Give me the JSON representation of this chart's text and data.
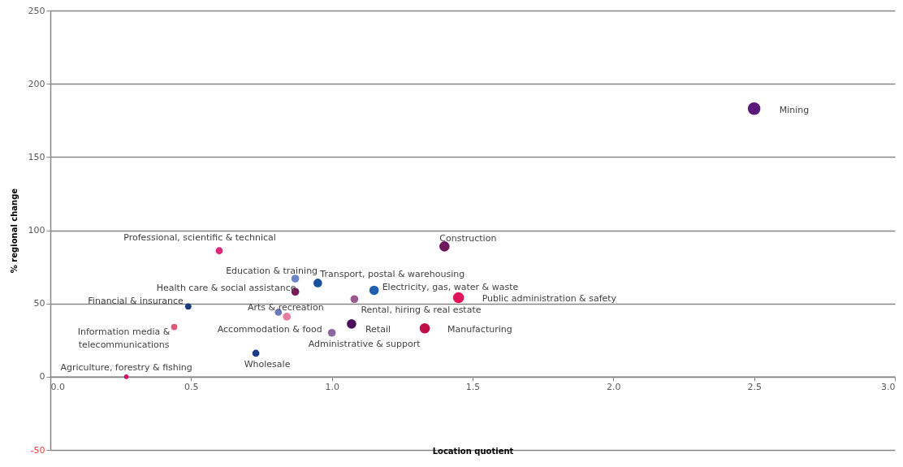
{
  "chart_data": {
    "type": "bubble",
    "xlabel": "Location quotient",
    "ylabel": "% regional change",
    "xlim": [
      0,
      3
    ],
    "xticks": [
      {
        "value": 0,
        "label": "0.0"
      },
      {
        "value": 0.5,
        "label": "0.5"
      },
      {
        "value": 1,
        "label": "1.0"
      },
      {
        "value": 1.5,
        "label": "1.5"
      },
      {
        "value": 2,
        "label": "2.0"
      },
      {
        "value": 2.5,
        "label": "2.5"
      },
      {
        "value": 3,
        "label": "3.0"
      }
    ],
    "ylim": [
      -50,
      250
    ],
    "yticks": [
      -50,
      0,
      50,
      100,
      150,
      200,
      250
    ],
    "grid": "y",
    "series": [
      {
        "name": "Mining",
        "color": "#5b1a7a",
        "x": [
          2.5
        ],
        "values": [
          183
        ],
        "sizes": [
          1
        ]
      },
      {
        "name": "Construction",
        "color": "#6e1a5c",
        "x": [
          1.4
        ],
        "values": [
          89
        ],
        "sizes": [
          0.66
        ]
      },
      {
        "name": "Professional, scientific & technical",
        "color": "#e0287a",
        "x": [
          0.6
        ],
        "values": [
          86
        ],
        "sizes": [
          0.32
        ]
      },
      {
        "name": "Education & training",
        "color": "#6b84c8",
        "x": [
          0.87
        ],
        "values": [
          67
        ],
        "sizes": [
          0.39
        ]
      },
      {
        "name": "Transport, postal & warehousing",
        "color": "#1a4f9a",
        "x": [
          0.95
        ],
        "values": [
          64
        ],
        "sizes": [
          0.47
        ]
      },
      {
        "name": "Health care & social assistance",
        "color": "#7a1a5c",
        "x": [
          0.87
        ],
        "values": [
          58
        ],
        "sizes": [
          0.39
        ]
      },
      {
        "name": "Electricity, gas, water & waste",
        "color": "#1f5fb0",
        "x": [
          1.15
        ],
        "values": [
          59
        ],
        "sizes": [
          0.56
        ]
      },
      {
        "name": "Public administration & safety",
        "color": "#e0145a",
        "x": [
          1.45
        ],
        "values": [
          54
        ],
        "sizes": [
          0.77
        ]
      },
      {
        "name": "Rental, hiring & real estate",
        "color": "#9a5a8e",
        "x": [
          1.08
        ],
        "values": [
          53
        ],
        "sizes": [
          0.39
        ]
      },
      {
        "name": "Financial & insurance",
        "color": "#1a3a7a",
        "x": [
          0.49
        ],
        "values": [
          48
        ],
        "sizes": [
          0.25
        ]
      },
      {
        "name": "Arts & recreation",
        "color": "#6a78b8",
        "x": [
          0.81
        ],
        "values": [
          44
        ],
        "sizes": [
          0.32
        ]
      },
      {
        "name": "Accommodation & food",
        "color": "#e87aa0",
        "x": [
          0.84
        ],
        "values": [
          41
        ],
        "sizes": [
          0.39
        ]
      },
      {
        "name": "Information media &\ntelecommunications",
        "color": "#e05a7a",
        "x": [
          0.44
        ],
        "values": [
          34
        ],
        "sizes": [
          0.25
        ]
      },
      {
        "name": "Retail",
        "color": "#4a0f5a",
        "x": [
          1.07
        ],
        "values": [
          36
        ],
        "sizes": [
          0.56
        ]
      },
      {
        "name": "Administrative & support",
        "color": "#8a6a9e",
        "x": [
          1.0
        ],
        "values": [
          30
        ],
        "sizes": [
          0.39
        ]
      },
      {
        "name": "Manufacturing",
        "color": "#c0104a",
        "x": [
          1.33
        ],
        "values": [
          33
        ],
        "sizes": [
          0.66
        ]
      },
      {
        "name": "Wholesale",
        "color": "#1a3a8a",
        "x": [
          0.73
        ],
        "values": [
          16
        ],
        "sizes": [
          0.32
        ]
      },
      {
        "name": "Agriculture, forestry & fishing",
        "color": "#d0106a",
        "x": [
          0.27
        ],
        "values": [
          0
        ],
        "sizes": [
          0.14
        ]
      }
    ]
  }
}
